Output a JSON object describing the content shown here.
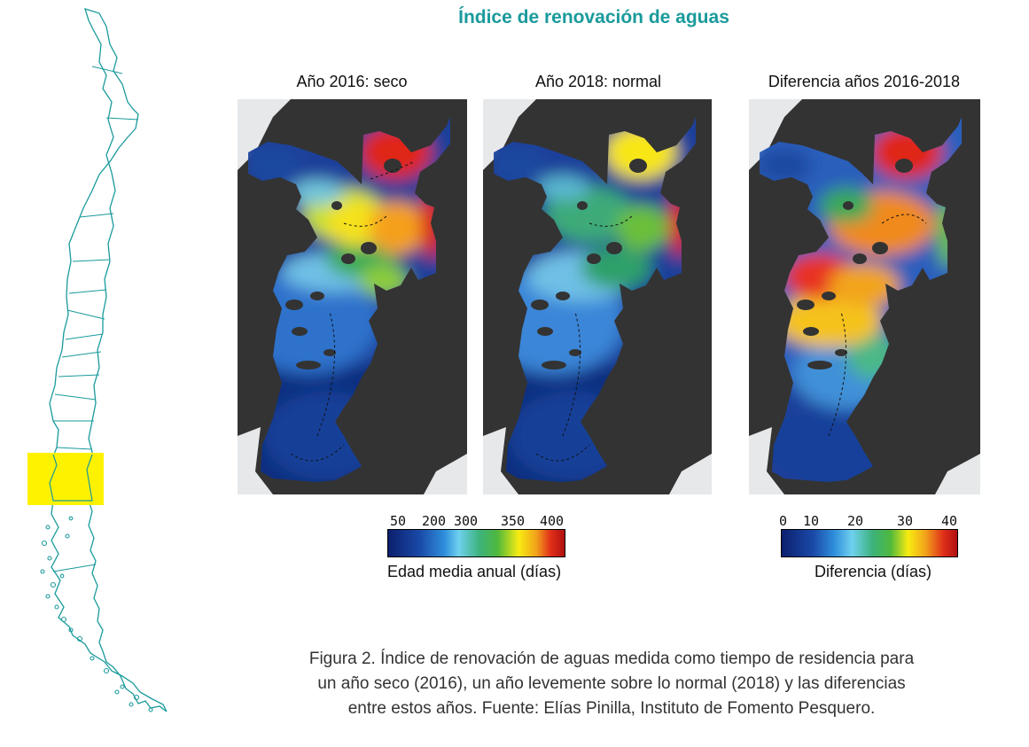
{
  "title": "Índice de renovación de aguas",
  "panels": [
    {
      "title": "Año 2016: seco"
    },
    {
      "title": "Año 2018: normal"
    },
    {
      "title": "Diferencia años 2016-2018"
    }
  ],
  "colorbar_age": {
    "ticks": [
      "50",
      "200",
      "300",
      "350",
      "400"
    ],
    "label": "Edad media anual (días)"
  },
  "colorbar_diff": {
    "ticks": [
      "0",
      "10",
      "20",
      "30",
      "40"
    ],
    "label": "Diferencia (días)"
  },
  "caption": {
    "line1": "Figura 2. Índice de renovación de aguas medida como tiempo de residencia para",
    "line2": "un año seco (2016), un año levemente sobre lo normal (2018) y las diferencias",
    "line3": "entre estos años. Fuente: Elías Pinilla, Instituto de Fomento Pesquero."
  },
  "colors": {
    "title": "#1a9a9c",
    "chile_outline": "#1a9a9c",
    "highlight": "#fff200",
    "land": "#333333"
  }
}
